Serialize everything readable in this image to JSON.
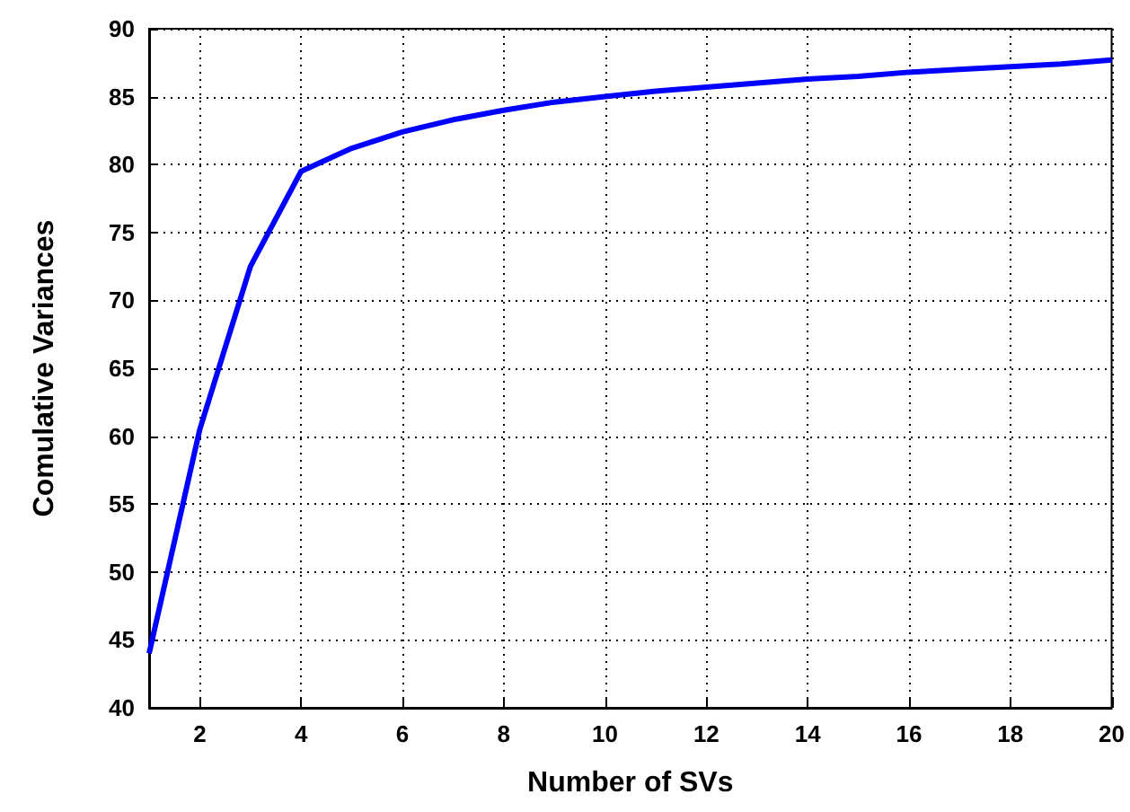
{
  "chart_data": {
    "type": "line",
    "xlabel": "Number of SVs",
    "ylabel": "Comulative Variances",
    "x": [
      1,
      2,
      3,
      4,
      5,
      6,
      7,
      8,
      9,
      10,
      11,
      12,
      13,
      14,
      15,
      16,
      17,
      18,
      19,
      20
    ],
    "series": [
      {
        "color": "#0000ff",
        "values": [
          44,
          60.5,
          72.5,
          79.5,
          81.2,
          82.4,
          83.3,
          84.0,
          84.6,
          85.0,
          85.4,
          85.7,
          86.0,
          86.3,
          86.5,
          86.8,
          87.0,
          87.2,
          87.4,
          87.7
        ]
      }
    ],
    "xlim": [
      1,
      20
    ],
    "xticks": [
      2,
      4,
      6,
      8,
      10,
      12,
      14,
      16,
      18,
      20
    ],
    "ylim": [
      40,
      90
    ],
    "yticks": [
      40,
      45,
      50,
      55,
      60,
      65,
      70,
      75,
      80,
      85,
      90
    ],
    "grid": true,
    "marker": "none",
    "line_style": "solid"
  }
}
